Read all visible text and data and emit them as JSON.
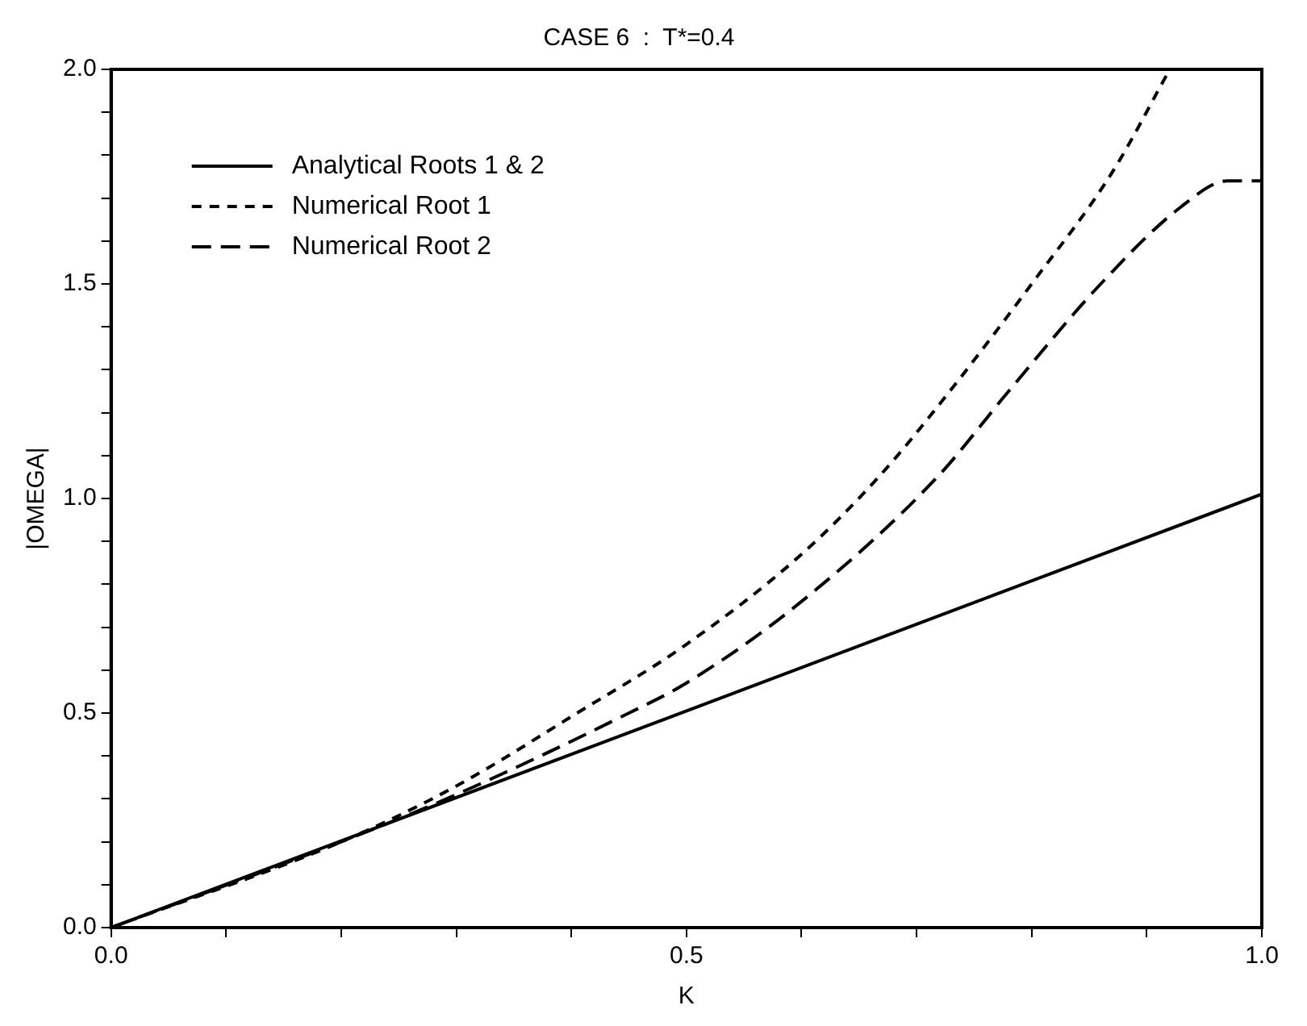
{
  "chart_data": {
    "type": "line",
    "title": "CASE 6  :  T*=0.4",
    "xlabel": "K",
    "ylabel": "|OMEGA|",
    "xlim": [
      0,
      1
    ],
    "ylim": [
      0,
      2
    ],
    "xticks": [
      {
        "value": 0,
        "label": "0.0"
      },
      {
        "value": 0.1,
        "label": null
      },
      {
        "value": 0.2,
        "label": null
      },
      {
        "value": 0.3,
        "label": null
      },
      {
        "value": 0.4,
        "label": null
      },
      {
        "value": 0.5,
        "label": "0.5"
      },
      {
        "value": 0.6,
        "label": null
      },
      {
        "value": 0.7,
        "label": null
      },
      {
        "value": 0.8,
        "label": null
      },
      {
        "value": 0.9,
        "label": null
      },
      {
        "value": 1,
        "label": "1.0"
      }
    ],
    "yticks": [
      {
        "value": 0,
        "label": "0.0"
      },
      {
        "value": 0.1,
        "label": null
      },
      {
        "value": 0.2,
        "label": null
      },
      {
        "value": 0.3,
        "label": null
      },
      {
        "value": 0.4,
        "label": null
      },
      {
        "value": 0.5,
        "label": "0.5"
      },
      {
        "value": 0.6,
        "label": null
      },
      {
        "value": 0.7,
        "label": null
      },
      {
        "value": 0.8,
        "label": null
      },
      {
        "value": 0.9,
        "label": null
      },
      {
        "value": 1,
        "label": "1.0"
      },
      {
        "value": 1.1,
        "label": null
      },
      {
        "value": 1.2,
        "label": null
      },
      {
        "value": 1.3,
        "label": null
      },
      {
        "value": 1.4,
        "label": null
      },
      {
        "value": 1.5,
        "label": "1.5"
      },
      {
        "value": 1.6,
        "label": null
      },
      {
        "value": 1.7,
        "label": null
      },
      {
        "value": 1.8,
        "label": null
      },
      {
        "value": 1.9,
        "label": null
      },
      {
        "value": 2,
        "label": "2.0"
      }
    ],
    "grid": false,
    "legend": "top left",
    "marker": "none",
    "series": [
      {
        "name": "Analytical Roots 1 & 2",
        "color": "#000000",
        "line_style": "solid",
        "x": [
          0,
          1
        ],
        "values": [
          0,
          1.01
        ]
      },
      {
        "name": "Numerical Root 1",
        "color": "#000000",
        "line_style": "dotted",
        "x": [
          0,
          0.2,
          0.3,
          0.405,
          0.5,
          0.6,
          0.667,
          0.72,
          0.8,
          0.87,
          0.92
        ],
        "values": [
          0,
          0.2,
          0.33,
          0.5,
          0.66,
          0.87,
          1.05,
          1.22,
          1.5,
          1.76,
          2.0
        ]
      },
      {
        "name": "Numerical Root 2",
        "color": "#000000",
        "line_style": "dashed",
        "x": [
          0,
          0.2,
          0.3,
          0.45,
          0.5,
          0.6,
          0.718,
          0.78,
          0.86,
          0.93,
          0.97,
          1.0
        ],
        "values": [
          0,
          0.2,
          0.31,
          0.5,
          0.57,
          0.76,
          1.05,
          1.25,
          1.5,
          1.68,
          1.74,
          1.74
        ]
      }
    ]
  }
}
